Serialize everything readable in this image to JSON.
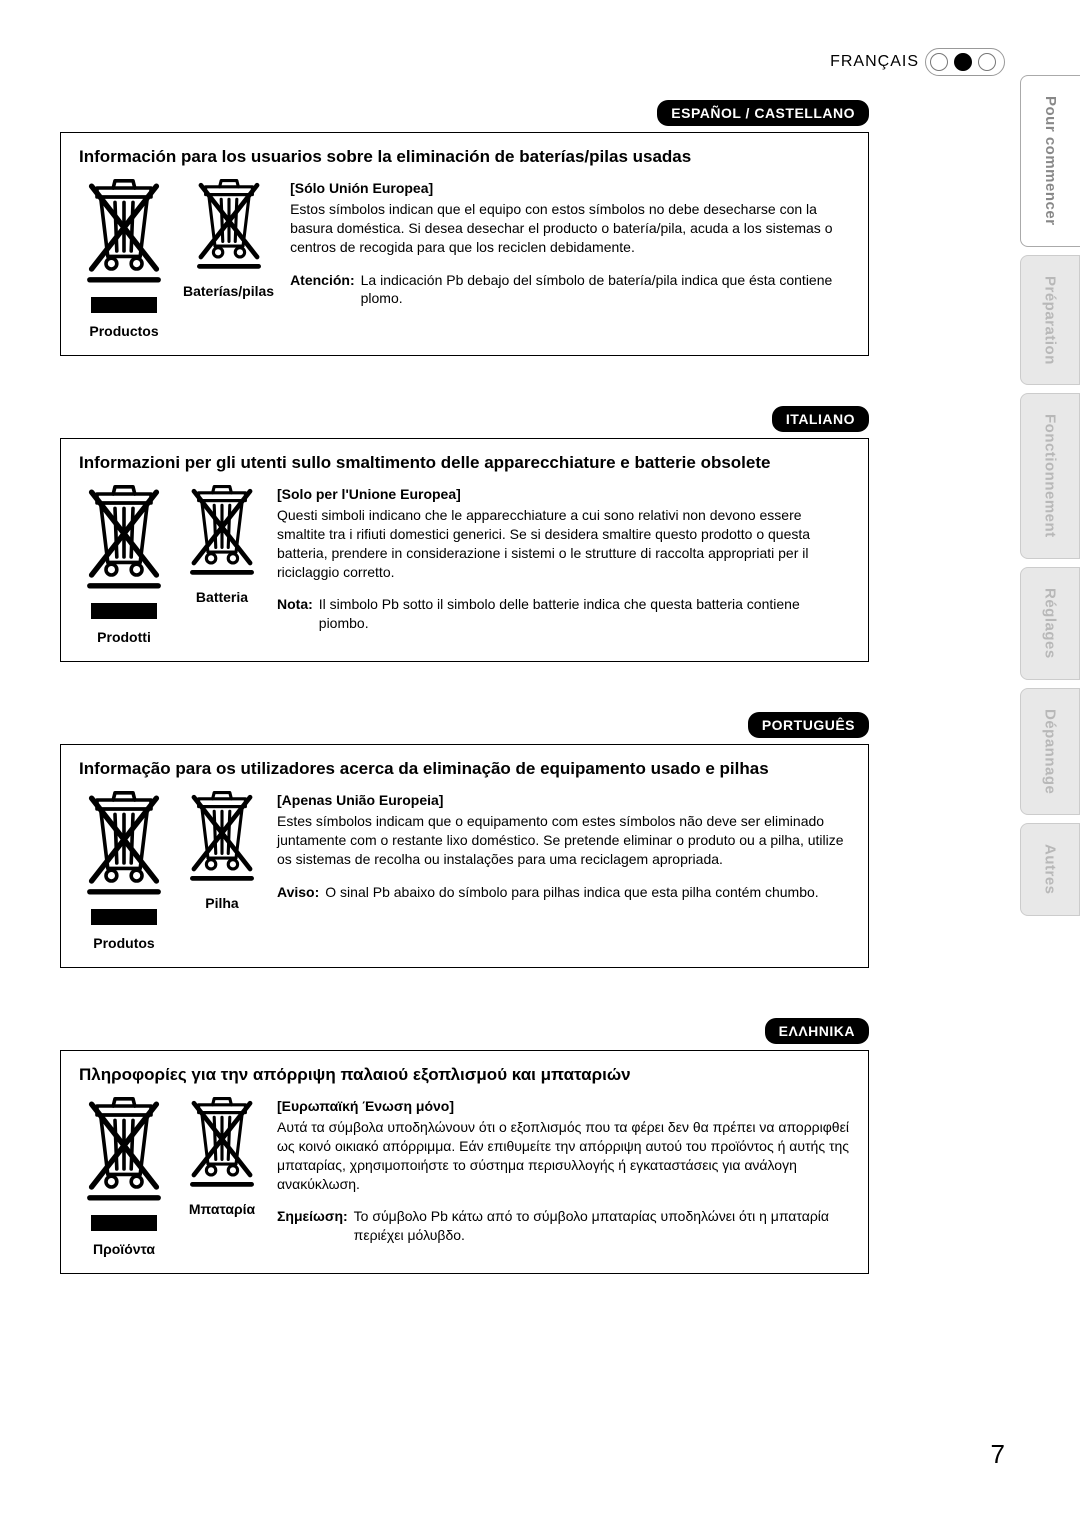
{
  "page_number": "7",
  "header": {
    "language_label": "FRANÇAIS",
    "dots": [
      false,
      true,
      false
    ]
  },
  "side_tabs": [
    {
      "label": "Pour commencer",
      "active": true
    },
    {
      "label": "Préparation",
      "active": false
    },
    {
      "label": "Fonctionnement",
      "active": false
    },
    {
      "label": "Réglages",
      "active": false
    },
    {
      "label": "Dépannage",
      "active": false
    },
    {
      "label": "Autres",
      "active": false
    }
  ],
  "sections": [
    {
      "lang_pill": "ESPAÑOL / CASTELLANO",
      "title": "Información para los usuarios sobre la eliminación de baterías/pilas usadas",
      "products_label": "Productos",
      "battery_label": "Baterías/pilas",
      "subhead": "[Sólo Unión Europea]",
      "body": "Estos símbolos indican que el equipo con estos símbolos no debe desecharse con la basura doméstica. Si desea desechar el producto o batería/pila, acuda a los sistemas o centros de recogida para que los reciclen debidamente.",
      "note_key": "Atención:",
      "note_body": "La indicación Pb debajo del símbolo de batería/pila indica que ésta contiene plomo."
    },
    {
      "lang_pill": "ITALIANO",
      "title": "Informazioni per gli utenti sullo smaltimento delle apparecchiature e batterie obsolete",
      "products_label": "Prodotti",
      "battery_label": "Batteria",
      "subhead": "[Solo per l'Unione Europea]",
      "body": "Questi simboli indicano che le apparecchiature a cui sono relativi non devono essere smaltite tra i rifiuti domestici generici. Se si desidera smaltire questo prodotto o questa batteria, prendere in considerazione i sistemi o le strutture di raccolta appropriati per il riciclaggio corretto.",
      "note_key": "Nota:",
      "note_body": "Il simbolo Pb sotto il simbolo delle batterie indica che questa batteria contiene piombo."
    },
    {
      "lang_pill": "PORTUGUÊS",
      "title": "Informação para os utilizadores acerca da eliminação de equipamento usado e pilhas",
      "products_label": "Produtos",
      "battery_label": "Pilha",
      "subhead": "[Apenas União Europeia]",
      "body": "Estes símbolos indicam que o equipamento com estes símbolos não deve ser eliminado juntamente com o restante lixo doméstico. Se pretende eliminar o produto ou a pilha, utilize os sistemas de recolha ou  instalações para uma reciclagem apropriada.",
      "note_key": "Aviso:",
      "note_body": "O sinal Pb abaixo do símbolo para pilhas indica que esta pilha contém chumbo."
    },
    {
      "lang_pill": "ΕΛΛΗΝΙΚΑ",
      "title": "Πληροφορίες για την απόρριψη παλαιού εξοπλισμού και μπαταριών",
      "products_label": "Προϊόντα",
      "battery_label": "Μπαταρία",
      "subhead": "[Ευρωπαϊκή Ένωση μόνο]",
      "body": "Αυτά τα σύμβολα υποδηλώνουν ότι ο εξοπλισμός που τα φέρει δεν θα πρέπει να απορριφθεί ως κοινό οικιακό απόρριμμα. Εάν επιθυμείτε την απόρριψη αυτού του προϊόντος ή αυτής της μπαταρίας, χρησιμοποιήστε το σύστημα περισυλλογής ή εγκαταστάσεις για ανάλογη ανακύκλωση.",
      "note_key": "Σημείωση:",
      "note_body": "Το σύμβολο Pb κάτω από το σύμβολο μπαταρίας υποδηλώνει ότι η μπαταρία περιέχει μόλυβδο."
    }
  ],
  "icon": {
    "stroke": "#000000",
    "stroke_width": 4,
    "large_size": 90,
    "small_size": 78
  },
  "colors": {
    "page_bg": "#ffffff",
    "pill_bg": "#000000",
    "pill_fg": "#ffffff",
    "tab_bg": "#e8e8e8",
    "tab_inactive_fg": "#b8b8b8",
    "tab_active_fg": "#888888",
    "border": "#000000"
  },
  "typography": {
    "title_size_pt": 17,
    "body_size_pt": 14,
    "pill_size_pt": 14,
    "page_num_size_pt": 26,
    "tab_size_pt": 15
  }
}
